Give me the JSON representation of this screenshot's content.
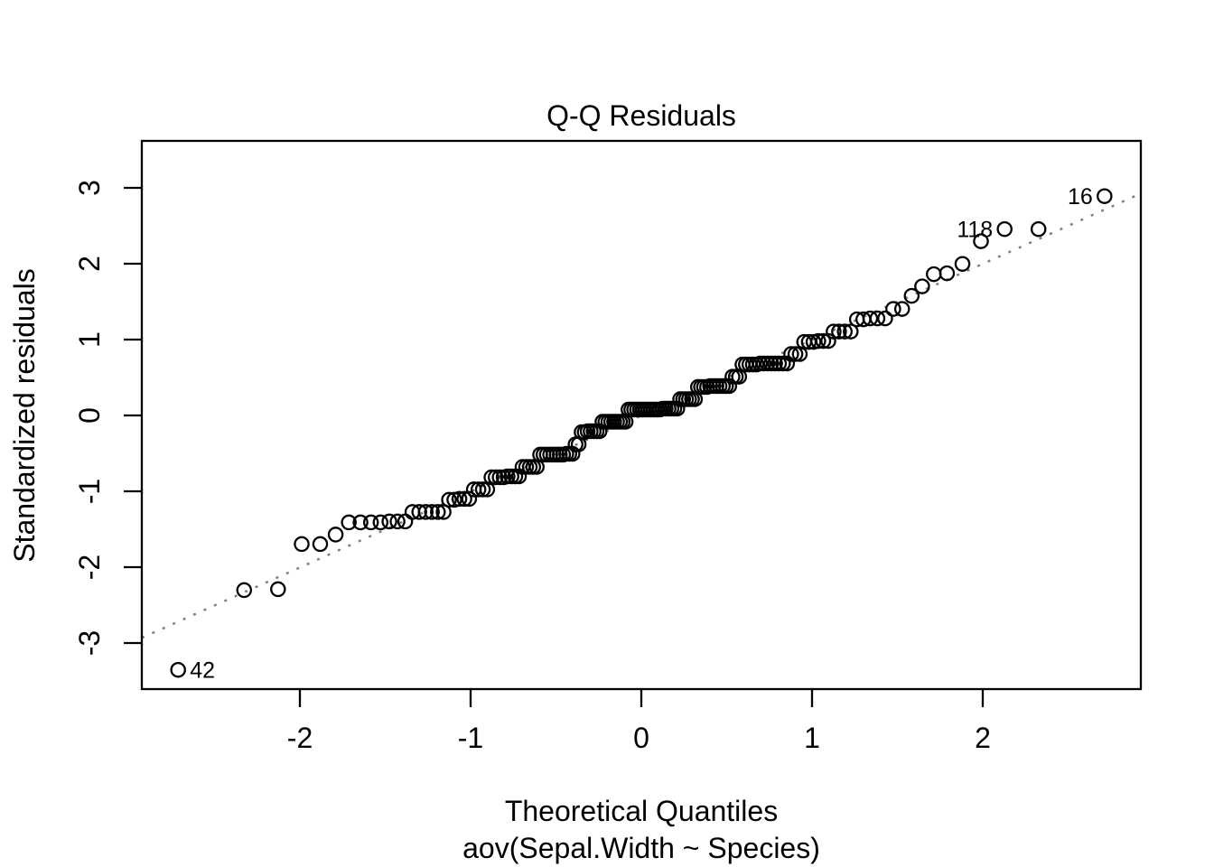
{
  "chart_data": {
    "type": "scatter",
    "subtype": "normal-qq-plot",
    "title": "Q-Q Residuals",
    "xlabel": "Theoretical Quantiles",
    "sub_caption": "aov(Sepal.Width ~ Species)",
    "ylabel": "Standardized residuals",
    "x_ticks": [
      -2,
      -1,
      0,
      1,
      2
    ],
    "y_ticks": [
      -3,
      -2,
      -1,
      0,
      1,
      2,
      3
    ],
    "x_range": [
      -2.926,
      2.926
    ],
    "y_range": [
      -3.607,
      3.619
    ],
    "n_points": 150,
    "theoretical_quantiles_rule": "qnorm((i - 0.5) / 150) for i = 1..150",
    "sorted_std_residual_levels": [
      [
        -3.354,
        1
      ],
      [
        -2.302,
        1
      ],
      [
        -2.29,
        1
      ],
      [
        -1.695,
        2
      ],
      [
        -1.57,
        1
      ],
      [
        -1.41,
        4
      ],
      [
        -1.398,
        3
      ],
      [
        -1.273,
        6
      ],
      [
        -1.112,
        2
      ],
      [
        -1.1,
        3
      ],
      [
        -0.975,
        4
      ],
      [
        -0.815,
        4
      ],
      [
        -0.803,
        4
      ],
      [
        -0.678,
        5
      ],
      [
        -0.517,
        8
      ],
      [
        -0.506,
        3
      ],
      [
        -0.381,
        2
      ],
      [
        -0.22,
        2
      ],
      [
        -0.208,
        5
      ],
      [
        -0.083,
        9
      ],
      [
        0.077,
        12
      ],
      [
        0.089,
        6
      ],
      [
        0.214,
        6
      ],
      [
        0.375,
        4
      ],
      [
        0.387,
        7
      ],
      [
        0.511,
        3
      ],
      [
        0.672,
        5
      ],
      [
        0.684,
        8
      ],
      [
        0.809,
        3
      ],
      [
        0.969,
        3
      ],
      [
        0.981,
        3
      ],
      [
        1.106,
        4
      ],
      [
        1.267,
        2
      ],
      [
        1.279,
        3
      ],
      [
        1.404,
        2
      ],
      [
        1.576,
        1
      ],
      [
        1.701,
        1
      ],
      [
        1.862,
        1
      ],
      [
        1.874,
        1
      ],
      [
        1.998,
        1
      ],
      [
        2.296,
        1
      ],
      [
        2.456,
        2
      ],
      [
        2.891,
        1
      ]
    ],
    "reference_line": {
      "slope": 1.0007,
      "intercept": -0.003,
      "style": "dotted",
      "color": "#808080"
    },
    "labeled_points": [
      {
        "label": "42",
        "rank": 1,
        "side": "right"
      },
      {
        "label": "118",
        "rank": 148,
        "side": "left"
      },
      {
        "label": "16",
        "rank": 150,
        "side": "left"
      }
    ],
    "point_style": {
      "shape": "open-circle",
      "color": "#000000"
    },
    "grid": false,
    "legend": false
  },
  "colors": {
    "background": "#ffffff",
    "foreground": "#000000",
    "reference_line": "#808080"
  }
}
